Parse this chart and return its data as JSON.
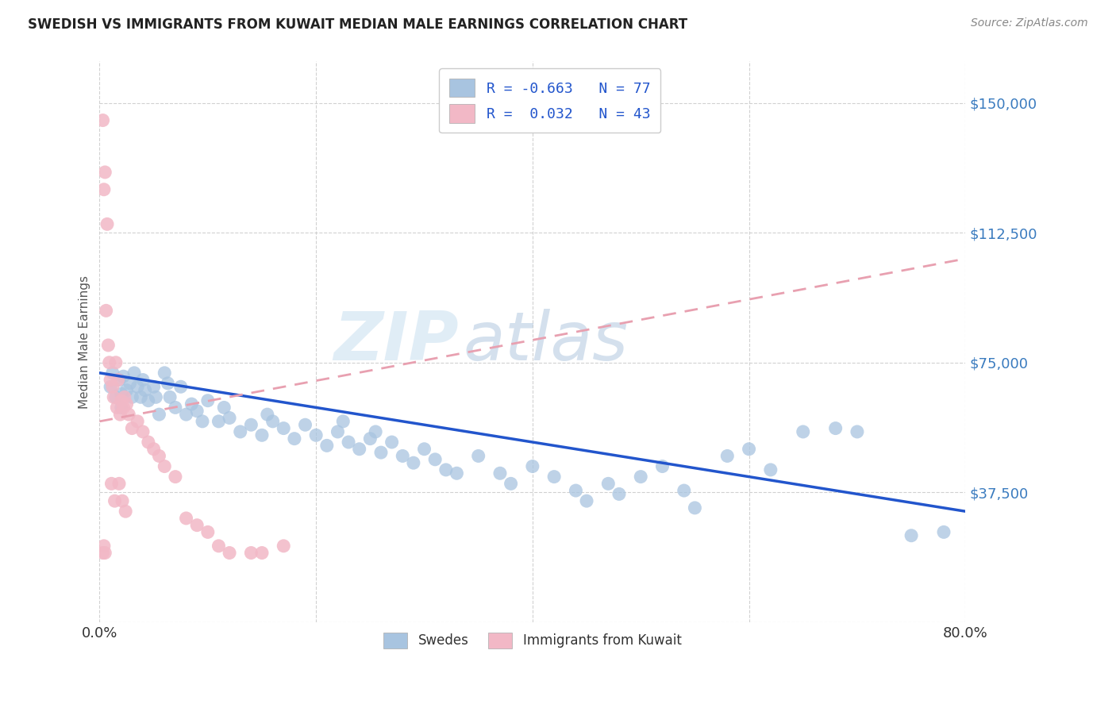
{
  "title": "SWEDISH VS IMMIGRANTS FROM KUWAIT MEDIAN MALE EARNINGS CORRELATION CHART",
  "source": "Source: ZipAtlas.com",
  "ylabel": "Median Male Earnings",
  "yticks": [
    0,
    37500,
    75000,
    112500,
    150000
  ],
  "ytick_labels": [
    "",
    "$37,500",
    "$75,000",
    "$112,500",
    "$150,000"
  ],
  "xmin": 0.0,
  "xmax": 80.0,
  "ymin": 0,
  "ymax": 162000,
  "blue_color": "#a8c4e0",
  "pink_color": "#f2b8c6",
  "blue_line_color": "#2255cc",
  "pink_line_color": "#e8a0b0",
  "watermark_zip": "ZIP",
  "watermark_atlas": "atlas",
  "legend_R1": "-0.663",
  "legend_N1": "77",
  "legend_R2": "0.032",
  "legend_N2": "43",
  "legend_label1": "Swedes",
  "legend_label2": "Immigrants from Kuwait",
  "blue_scatter_x": [
    1.0,
    1.2,
    1.5,
    1.8,
    2.0,
    2.0,
    2.2,
    2.5,
    2.8,
    3.0,
    3.2,
    3.5,
    3.8,
    4.0,
    4.2,
    4.5,
    5.0,
    5.2,
    5.5,
    6.0,
    6.3,
    6.5,
    7.0,
    7.5,
    8.0,
    8.5,
    9.0,
    9.5,
    10.0,
    11.0,
    11.5,
    12.0,
    13.0,
    14.0,
    15.0,
    15.5,
    16.0,
    17.0,
    18.0,
    19.0,
    20.0,
    21.0,
    22.0,
    22.5,
    23.0,
    24.0,
    25.0,
    25.5,
    26.0,
    27.0,
    28.0,
    29.0,
    30.0,
    31.0,
    32.0,
    33.0,
    35.0,
    37.0,
    38.0,
    40.0,
    42.0,
    44.0,
    45.0,
    47.0,
    48.0,
    50.0,
    52.0,
    54.0,
    55.0,
    58.0,
    60.0,
    62.0,
    65.0,
    68.0,
    70.0,
    75.0,
    78.0
  ],
  "blue_scatter_y": [
    68000,
    72000,
    65000,
    70000,
    66000,
    62000,
    71000,
    67000,
    69000,
    65000,
    72000,
    68000,
    65000,
    70000,
    67000,
    64000,
    68000,
    65000,
    60000,
    72000,
    69000,
    65000,
    62000,
    68000,
    60000,
    63000,
    61000,
    58000,
    64000,
    58000,
    62000,
    59000,
    55000,
    57000,
    54000,
    60000,
    58000,
    56000,
    53000,
    57000,
    54000,
    51000,
    55000,
    58000,
    52000,
    50000,
    53000,
    55000,
    49000,
    52000,
    48000,
    46000,
    50000,
    47000,
    44000,
    43000,
    48000,
    43000,
    40000,
    45000,
    42000,
    38000,
    35000,
    40000,
    37000,
    42000,
    45000,
    38000,
    33000,
    48000,
    50000,
    44000,
    55000,
    56000,
    55000,
    25000,
    26000
  ],
  "pink_scatter_x": [
    0.3,
    0.4,
    0.5,
    0.6,
    0.7,
    0.8,
    0.9,
    1.0,
    1.1,
    1.2,
    1.3,
    1.4,
    1.5,
    1.6,
    1.7,
    1.8,
    1.9,
    2.0,
    2.1,
    2.2,
    2.3,
    2.4,
    2.5,
    2.7,
    3.0,
    3.5,
    4.0,
    4.5,
    5.0,
    5.5,
    6.0,
    7.0,
    8.0,
    9.0,
    10.0,
    11.0,
    12.0,
    14.0,
    15.0,
    17.0,
    0.3,
    0.4,
    0.5
  ],
  "pink_scatter_y": [
    145000,
    125000,
    130000,
    90000,
    115000,
    80000,
    75000,
    70000,
    40000,
    68000,
    65000,
    35000,
    75000,
    62000,
    70000,
    40000,
    60000,
    64000,
    35000,
    62000,
    65000,
    32000,
    63000,
    60000,
    56000,
    58000,
    55000,
    52000,
    50000,
    48000,
    45000,
    42000,
    30000,
    28000,
    26000,
    22000,
    20000,
    20000,
    20000,
    22000,
    20000,
    22000,
    20000
  ],
  "blue_trend_x0": 0.0,
  "blue_trend_x1": 80.0,
  "blue_trend_y0": 72000,
  "blue_trend_y1": 32000,
  "pink_trend_x0": 0.0,
  "pink_trend_x1": 80.0,
  "pink_trend_y0": 58000,
  "pink_trend_y1": 105000
}
